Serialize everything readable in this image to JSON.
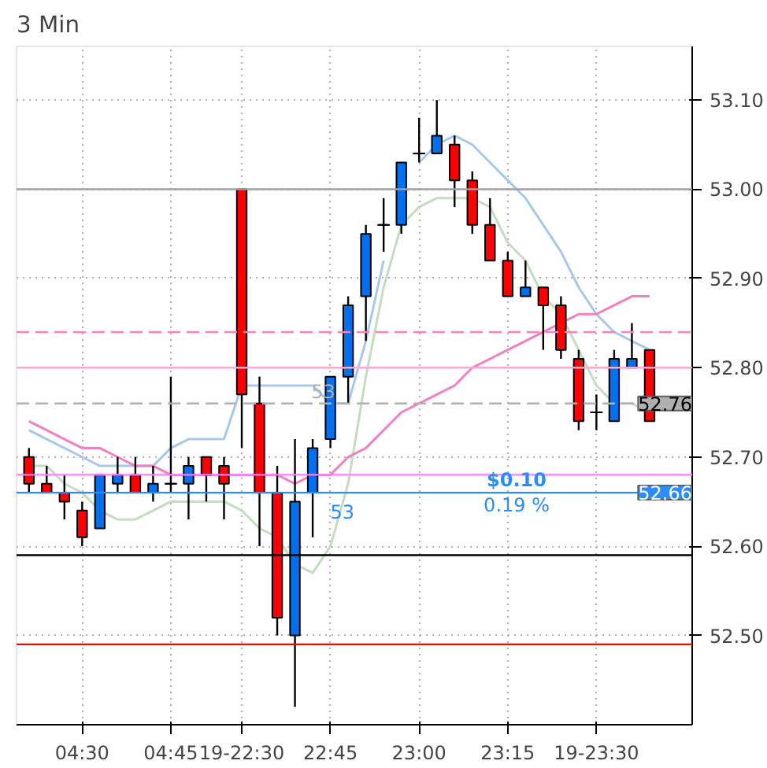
{
  "chart_data": {
    "type": "candlestick",
    "title": "3 Min",
    "categories": [
      null,
      null,
      null,
      "04:30",
      null,
      null,
      null,
      null,
      "04:45",
      null,
      null,
      null,
      "19-22:30",
      null,
      null,
      null,
      null,
      "22:45",
      null,
      null,
      null,
      null,
      "23:00",
      null,
      null,
      null,
      null,
      "23:15",
      null,
      null,
      null,
      null,
      "19-23:30",
      null,
      null,
      null
    ],
    "ohlc": [
      [
        52.7,
        52.71,
        52.66,
        52.67
      ],
      [
        52.67,
        52.69,
        52.66,
        52.66
      ],
      [
        52.66,
        52.68,
        52.63,
        52.65
      ],
      [
        52.64,
        52.65,
        52.6,
        52.61
      ],
      [
        52.62,
        52.68,
        52.62,
        52.68
      ],
      [
        52.67,
        52.7,
        52.66,
        52.68
      ],
      [
        52.68,
        52.7,
        52.66,
        52.66
      ],
      [
        52.66,
        52.69,
        52.65,
        52.67
      ],
      [
        52.67,
        52.79,
        52.66,
        52.67
      ],
      [
        52.67,
        52.7,
        52.63,
        52.69
      ],
      [
        52.7,
        52.7,
        52.65,
        52.68
      ],
      [
        52.69,
        52.7,
        52.63,
        52.67
      ],
      [
        53.0,
        53.0,
        52.71,
        52.77
      ],
      [
        52.76,
        52.79,
        52.6,
        52.66
      ],
      [
        52.66,
        52.69,
        52.5,
        52.52
      ],
      [
        52.5,
        52.72,
        52.42,
        52.65
      ],
      [
        52.66,
        52.72,
        52.61,
        52.71
      ],
      [
        52.72,
        52.79,
        52.71,
        52.79
      ],
      [
        52.79,
        52.88,
        52.76,
        52.87
      ],
      [
        52.88,
        52.96,
        52.83,
        52.95
      ],
      [
        52.96,
        52.99,
        52.93,
        52.96
      ],
      [
        52.96,
        53.03,
        52.95,
        53.03
      ],
      [
        53.04,
        53.08,
        53.03,
        53.04
      ],
      [
        53.04,
        53.1,
        53.04,
        53.06
      ],
      [
        53.05,
        53.06,
        52.98,
        53.01
      ],
      [
        53.01,
        53.02,
        52.95,
        52.96
      ],
      [
        52.96,
        52.99,
        52.92,
        52.92
      ],
      [
        52.92,
        52.93,
        52.88,
        52.88
      ],
      [
        52.88,
        52.92,
        52.88,
        52.89
      ],
      [
        52.89,
        52.89,
        52.82,
        52.87
      ],
      [
        52.87,
        52.88,
        52.81,
        52.82
      ],
      [
        52.81,
        52.82,
        52.73,
        52.74
      ],
      [
        52.75,
        52.77,
        52.73,
        52.75
      ],
      [
        52.74,
        52.82,
        52.74,
        52.81
      ],
      [
        52.8,
        52.85,
        52.8,
        52.81
      ],
      [
        52.82,
        52.82,
        52.74,
        52.74
      ]
    ],
    "colors": [
      "#ff0000",
      "#ff0000",
      "#ff0000",
      "#ff0000",
      "#0070f0",
      "#0070f0",
      "#ff0000",
      "#0070f0",
      "#000000",
      "#0070f0",
      "#ff0000",
      "#ff0000",
      "#ff0000",
      "#ff0000",
      "#ff0000",
      "#0070f0",
      "#0070f0",
      "#0070f0",
      "#0070f0",
      "#0070f0",
      "#000000",
      "#0070f0",
      "#000000",
      "#0070f0",
      "#ff0000",
      "#ff0000",
      "#ff0000",
      "#ff0000",
      "#0070f0",
      "#ff0000",
      "#ff0000",
      "#ff0000",
      "#000000",
      "#0070f0",
      "#0070f0",
      "#ff0000"
    ],
    "series": [
      {
        "type": "line",
        "color": "#a8c8ea",
        "values": [
          52.73,
          52.72,
          52.71,
          52.7,
          52.69,
          52.69,
          52.69,
          52.69,
          52.71,
          52.72,
          52.72,
          52.72,
          52.78,
          52.78,
          52.78,
          52.78,
          52.78,
          52.76,
          52.76,
          52.83,
          52.92,
          null,
          53.03,
          53.05,
          53.06,
          53.05,
          53.03,
          53.01,
          52.99,
          52.96,
          52.93,
          52.89,
          52.86,
          52.84,
          52.83,
          52.82
        ]
      },
      {
        "type": "line",
        "color": "#c4dcc0",
        "values": [
          52.69,
          52.69,
          52.67,
          52.66,
          52.64,
          52.63,
          52.63,
          52.64,
          52.65,
          52.65,
          52.65,
          52.65,
          52.64,
          52.62,
          52.61,
          52.58,
          52.57,
          52.6,
          52.67,
          52.79,
          52.89,
          52.96,
          52.98,
          52.99,
          52.99,
          52.99,
          52.98,
          52.94,
          52.92,
          52.88,
          52.86,
          52.82,
          52.78,
          52.76,
          52.76,
          52.75
        ]
      },
      {
        "type": "line",
        "color": "#f080c0",
        "values": [
          52.74,
          52.73,
          52.72,
          52.71,
          52.71,
          52.7,
          52.69,
          52.69,
          52.68,
          52.68,
          52.68,
          52.68,
          52.68,
          52.68,
          52.68,
          52.67,
          52.68,
          52.68,
          52.7,
          52.71,
          52.73,
          52.75,
          52.76,
          52.77,
          52.78,
          52.8,
          52.81,
          52.82,
          52.83,
          52.84,
          52.85,
          52.86,
          52.86,
          52.87,
          52.88,
          52.88
        ]
      }
    ],
    "ylim": [
      52.4,
      53.16
    ],
    "yticks": [
      {
        "value": 52.5,
        "label": "52.50"
      },
      {
        "value": 52.6,
        "label": "52.60"
      },
      {
        "value": 52.7,
        "label": "52.70"
      },
      {
        "value": 52.8,
        "label": "52.80"
      },
      {
        "value": 52.9,
        "label": "52.90"
      },
      {
        "value": 53.0,
        "label": "53.00"
      },
      {
        "value": 53.1,
        "label": "53.10"
      }
    ],
    "ref_lines": [
      {
        "axis": "y",
        "value": 53.0,
        "label": null,
        "color": "#a0a0a0",
        "line_style": "solid"
      },
      {
        "axis": "y",
        "value": 52.84,
        "label": null,
        "color": "#ff80c0",
        "line_style": "dashed"
      },
      {
        "axis": "y",
        "value": 52.8,
        "label": null,
        "color": "#ffa8d0",
        "line_style": "solid"
      },
      {
        "axis": "y",
        "value": 52.76,
        "label": "52.76",
        "color": "#b0b0b0",
        "line_style": "dashed"
      },
      {
        "axis": "y",
        "value": 52.68,
        "label": null,
        "color": "#ff80ff",
        "line_style": "solid"
      },
      {
        "axis": "y",
        "value": 52.66,
        "label": "52.66",
        "color": "#2a8cff",
        "line_style": "solid"
      },
      {
        "axis": "y",
        "value": 52.59,
        "label": null,
        "color": "#000000",
        "line_style": "solid"
      },
      {
        "axis": "y",
        "value": 52.49,
        "label": null,
        "color": "#ff0000",
        "line_style": "solid"
      }
    ],
    "annotations": [
      {
        "text": "$0.10",
        "y": 52.66
      },
      {
        "text": "0.19 %",
        "y": 52.66
      },
      {
        "text": "53",
        "y": 52.76
      },
      {
        "text": "53",
        "y": 52.66
      }
    ],
    "grid": true
  }
}
